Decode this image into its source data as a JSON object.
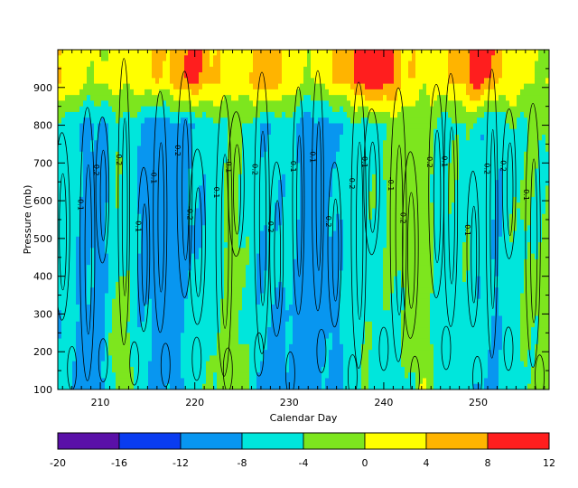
{
  "chart_data": {
    "type": "heatmap",
    "title": "",
    "xlabel": "Calendar Day",
    "ylabel": "Pressure (mb)",
    "xlim": [
      205.5,
      257.5
    ],
    "ylim": [
      1000,
      100
    ],
    "x_ticks": [
      210,
      220,
      230,
      240,
      250
    ],
    "y_ticks": [
      100,
      200,
      300,
      400,
      500,
      600,
      700,
      800,
      900
    ],
    "y_tick_labels": [
      "100",
      "200",
      "300",
      "400",
      "500",
      "600",
      "700",
      "800",
      "900"
    ],
    "colorbar": {
      "levels": [
        -20,
        -16,
        -12,
        -8,
        -4,
        0,
        4,
        8,
        12
      ],
      "tick_labels": [
        "-20",
        "-16",
        "-12",
        "-8",
        "-4",
        "0",
        "4",
        "8",
        "12"
      ],
      "colors": [
        "#5a10a8",
        "#0a3cf0",
        "#0896f0",
        "#00e6dc",
        "#7de61e",
        "#ffff00",
        "#ffb400",
        "#ff1e1e"
      ]
    },
    "shaded_field": {
      "description_units": "colored band value by calendar day",
      "days": [
        206,
        208,
        210,
        212,
        214,
        216,
        218,
        220,
        222,
        224,
        226,
        228,
        230,
        232,
        234,
        236,
        238,
        240,
        242,
        244,
        246,
        248,
        250,
        252,
        254,
        256
      ],
      "upper_level_value": [
        4,
        2,
        0,
        2,
        2,
        4,
        6,
        10,
        4,
        2,
        4,
        8,
        2,
        0,
        2,
        6,
        10,
        12,
        4,
        2,
        2,
        6,
        10,
        6,
        2,
        0
      ],
      "mid_level_value": [
        -6,
        -8,
        -10,
        -4,
        -8,
        -10,
        -10,
        -8,
        -6,
        -2,
        -6,
        -8,
        -6,
        -10,
        -10,
        -6,
        -6,
        -4,
        -2,
        -2,
        -6,
        -4,
        -6,
        -8,
        -4,
        -4
      ],
      "lower_level_value": [
        -7,
        -9,
        -10,
        0,
        -6,
        -10,
        -9,
        -6,
        -4,
        0,
        -6,
        -10,
        -10,
        -10,
        -9,
        -8,
        -4,
        -6,
        -6,
        0,
        -6,
        -6,
        -8,
        -8,
        -6,
        -2
      ]
    },
    "contour_labels": [
      "0.1",
      "-0.1",
      "0.2",
      "-0.2"
    ]
  }
}
